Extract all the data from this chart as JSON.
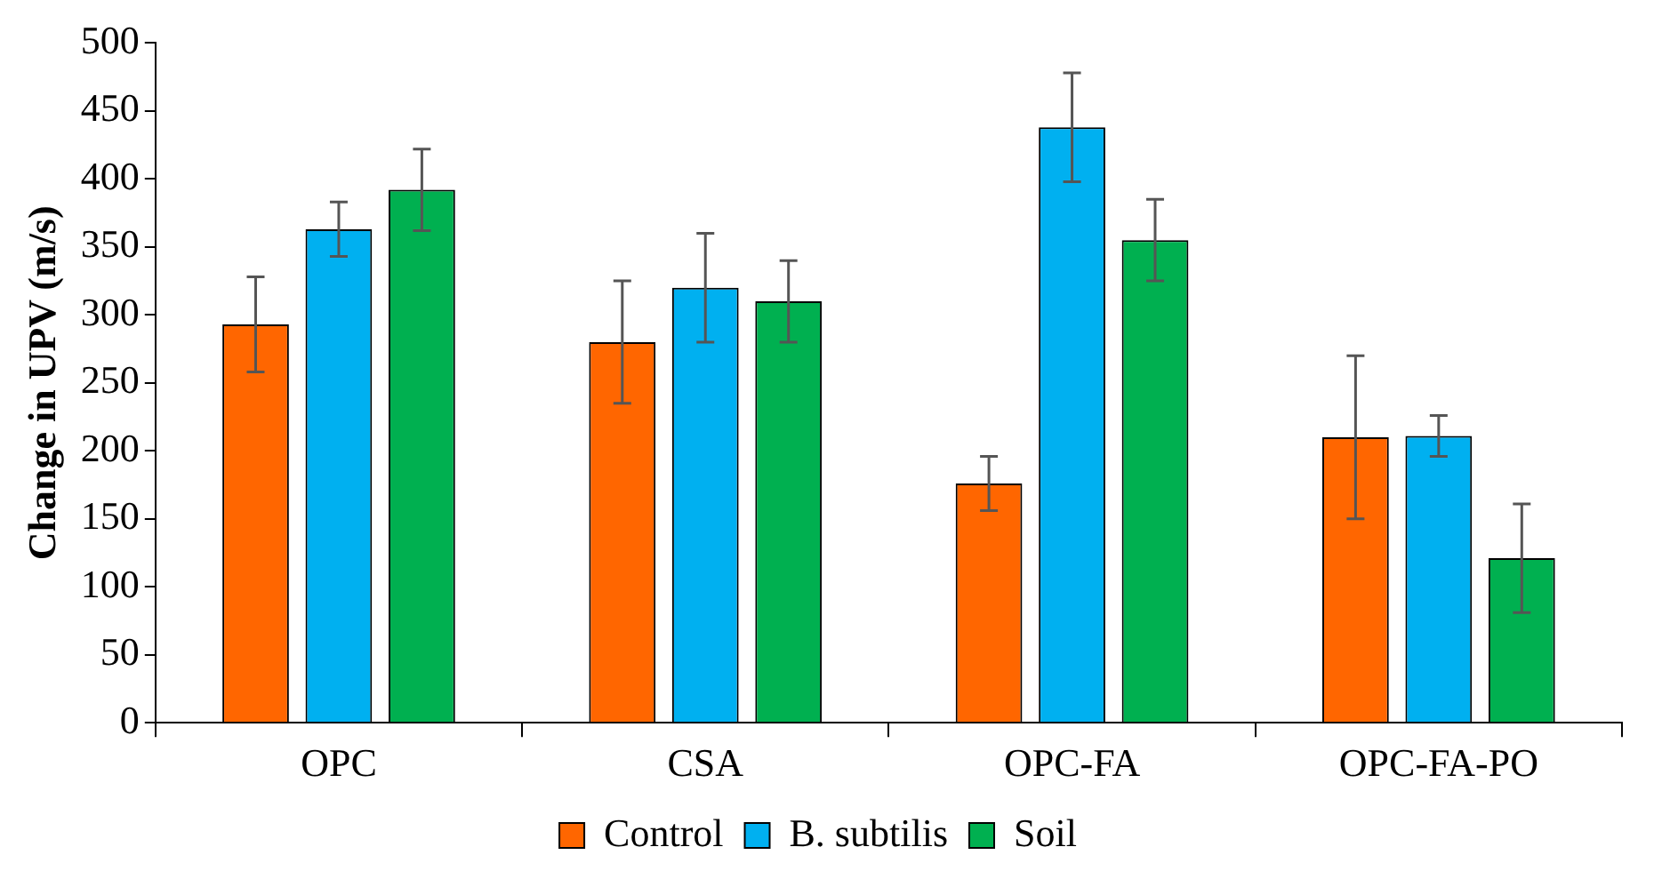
{
  "chart_data": {
    "type": "bar",
    "ylabel": "Change in UPV (m/s)",
    "categories": [
      "OPC",
      "CSA",
      "OPC-FA",
      "OPC-FA-PO"
    ],
    "series": [
      {
        "name": "Control",
        "color": "#ff6600",
        "values": [
          293,
          280,
          176,
          210
        ],
        "errors": [
          35,
          45,
          20,
          60
        ]
      },
      {
        "name": "B. subtilis",
        "color": "#00b0f0",
        "values": [
          363,
          320,
          438,
          211
        ],
        "errors": [
          20,
          40,
          40,
          15
        ]
      },
      {
        "name": "Soil",
        "color": "#00b050",
        "values": [
          392,
          310,
          355,
          121
        ],
        "errors": [
          30,
          30,
          30,
          40
        ]
      }
    ],
    "ylim": [
      0,
      500
    ],
    "yticks": [
      0,
      50,
      100,
      150,
      200,
      250,
      300,
      350,
      400,
      450,
      500
    ],
    "grid": false,
    "legend": "bottom"
  }
}
